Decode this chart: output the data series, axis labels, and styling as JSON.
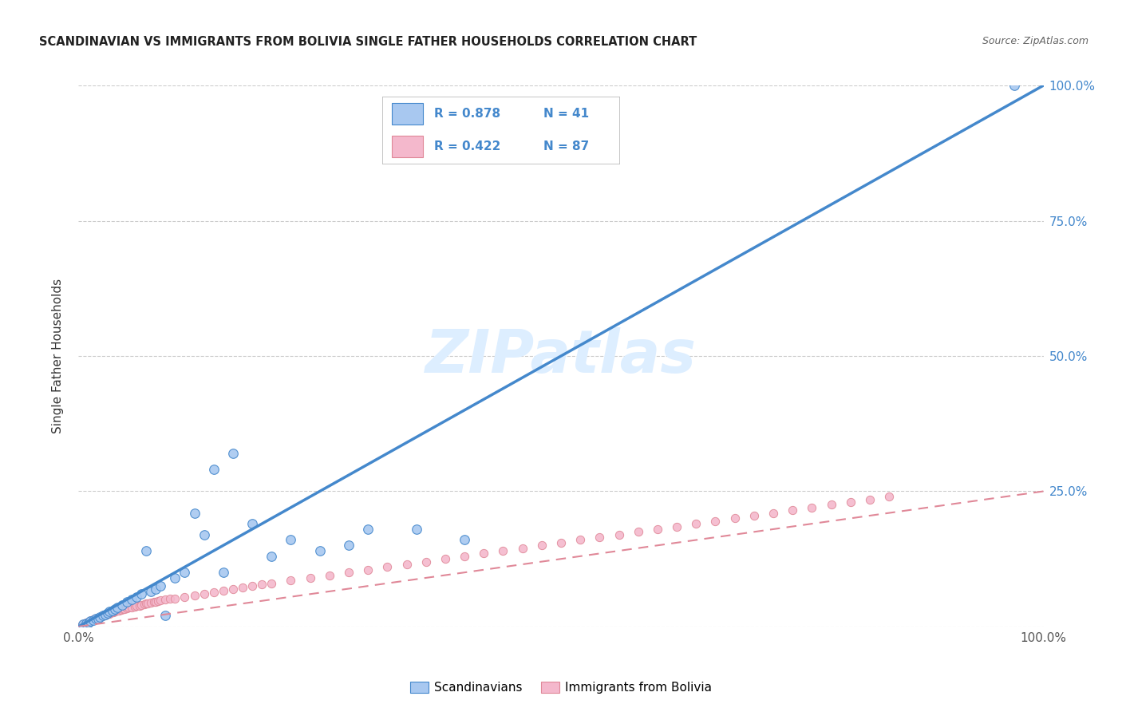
{
  "title": "SCANDINAVIAN VS IMMIGRANTS FROM BOLIVIA SINGLE FATHER HOUSEHOLDS CORRELATION CHART",
  "source": "Source: ZipAtlas.com",
  "ylabel": "Single Father Households",
  "xlim": [
    0,
    1
  ],
  "ylim": [
    0,
    1
  ],
  "legend_label1": "Scandinavians",
  "legend_label2": "Immigrants from Bolivia",
  "legend_R1": "R = 0.878",
  "legend_N1": "N = 41",
  "legend_R2": "R = 0.422",
  "legend_N2": "N = 87",
  "color_scandinavian": "#a8c8f0",
  "color_bolivia": "#f4b8cc",
  "color_line1": "#4488cc",
  "color_line2": "#e08898",
  "watermark": "ZIPatlas",
  "watermark_color": "#ddeeff",
  "scandinavian_x": [
    0.005,
    0.008,
    0.01,
    0.012,
    0.015,
    0.018,
    0.02,
    0.022,
    0.025,
    0.028,
    0.03,
    0.032,
    0.035,
    0.038,
    0.04,
    0.045,
    0.05,
    0.055,
    0.06,
    0.065,
    0.07,
    0.075,
    0.08,
    0.085,
    0.09,
    0.1,
    0.11,
    0.12,
    0.13,
    0.14,
    0.15,
    0.16,
    0.18,
    0.2,
    0.22,
    0.25,
    0.28,
    0.3,
    0.35,
    0.4,
    0.97
  ],
  "scandinavian_y": [
    0.004,
    0.006,
    0.008,
    0.01,
    0.012,
    0.015,
    0.015,
    0.018,
    0.02,
    0.022,
    0.025,
    0.028,
    0.03,
    0.032,
    0.035,
    0.04,
    0.045,
    0.05,
    0.055,
    0.06,
    0.14,
    0.065,
    0.07,
    0.075,
    0.02,
    0.09,
    0.1,
    0.21,
    0.17,
    0.29,
    0.1,
    0.32,
    0.19,
    0.13,
    0.16,
    0.14,
    0.15,
    0.18,
    0.18,
    0.16,
    1.0
  ],
  "bolivia_x": [
    0.003,
    0.005,
    0.007,
    0.008,
    0.009,
    0.01,
    0.012,
    0.013,
    0.015,
    0.017,
    0.018,
    0.02,
    0.022,
    0.024,
    0.025,
    0.027,
    0.028,
    0.03,
    0.032,
    0.035,
    0.036,
    0.038,
    0.04,
    0.042,
    0.044,
    0.046,
    0.048,
    0.05,
    0.052,
    0.055,
    0.058,
    0.06,
    0.063,
    0.065,
    0.068,
    0.07,
    0.072,
    0.075,
    0.078,
    0.08,
    0.082,
    0.085,
    0.09,
    0.095,
    0.1,
    0.11,
    0.12,
    0.13,
    0.14,
    0.15,
    0.16,
    0.17,
    0.18,
    0.19,
    0.2,
    0.22,
    0.24,
    0.26,
    0.28,
    0.3,
    0.32,
    0.34,
    0.36,
    0.38,
    0.4,
    0.42,
    0.44,
    0.46,
    0.48,
    0.5,
    0.52,
    0.54,
    0.56,
    0.58,
    0.6,
    0.62,
    0.64,
    0.66,
    0.68,
    0.7,
    0.72,
    0.74,
    0.76,
    0.78,
    0.8,
    0.82,
    0.84
  ],
  "bolivia_y": [
    0.002,
    0.004,
    0.006,
    0.007,
    0.008,
    0.009,
    0.011,
    0.012,
    0.013,
    0.014,
    0.015,
    0.016,
    0.018,
    0.019,
    0.02,
    0.021,
    0.022,
    0.023,
    0.024,
    0.026,
    0.027,
    0.028,
    0.029,
    0.03,
    0.031,
    0.032,
    0.033,
    0.034,
    0.035,
    0.036,
    0.037,
    0.038,
    0.039,
    0.04,
    0.041,
    0.042,
    0.043,
    0.044,
    0.045,
    0.046,
    0.047,
    0.048,
    0.05,
    0.051,
    0.052,
    0.055,
    0.058,
    0.06,
    0.063,
    0.066,
    0.069,
    0.072,
    0.075,
    0.078,
    0.08,
    0.085,
    0.09,
    0.095,
    0.1,
    0.105,
    0.11,
    0.115,
    0.12,
    0.125,
    0.13,
    0.135,
    0.14,
    0.145,
    0.15,
    0.155,
    0.16,
    0.165,
    0.17,
    0.175,
    0.18,
    0.185,
    0.19,
    0.195,
    0.2,
    0.205,
    0.21,
    0.215,
    0.22,
    0.225,
    0.23,
    0.235,
    0.24
  ],
  "line1_x": [
    0.0,
    1.0
  ],
  "line1_y": [
    0.0,
    1.0
  ],
  "line2_x": [
    0.0,
    1.0
  ],
  "line2_y": [
    0.0,
    0.25
  ]
}
